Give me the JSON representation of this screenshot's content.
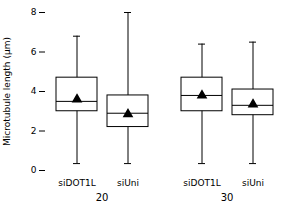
{
  "chart_data": {
    "type": "box",
    "ylabel": "Microtubule length (μm)",
    "categories": [
      "siUni",
      "siDOT1L",
      "siUni",
      "siDOT1L"
    ],
    "groups": [
      "20",
      "20",
      "30",
      "30"
    ],
    "whisker_low": [
      0.35,
      0.35,
      0.35,
      0.35
    ],
    "q1": [
      2.2,
      3.0,
      2.8,
      3.0
    ],
    "median": [
      2.9,
      3.5,
      3.3,
      3.8
    ],
    "mean": [
      2.85,
      3.6,
      3.35,
      3.8
    ],
    "q3": [
      3.8,
      4.7,
      4.1,
      4.7
    ],
    "whisker_high": [
      8.0,
      6.8,
      6.5,
      6.4
    ],
    "ylim": [
      0,
      8
    ],
    "yticks": [
      0,
      2,
      4,
      6,
      8
    ],
    "color": "black",
    "marker": "triangle"
  }
}
